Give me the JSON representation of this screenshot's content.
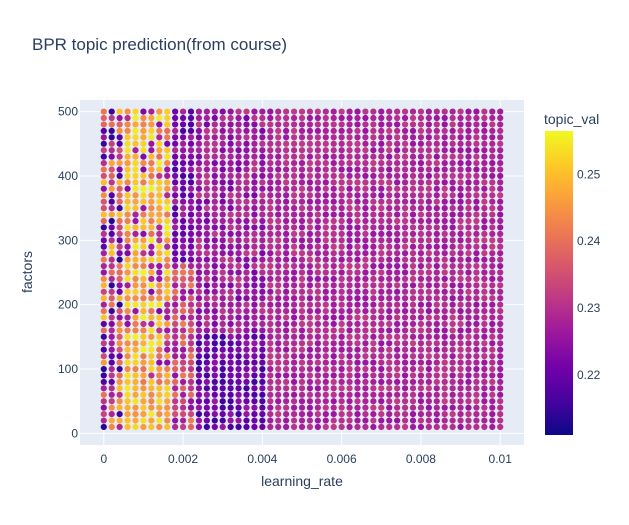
{
  "chart_data": {
    "type": "scatter",
    "title": "BPR topic prediction(from course)",
    "xlabel": "learning_rate",
    "ylabel": "factors",
    "xlim": [
      -0.0006,
      0.0106
    ],
    "ylim": [
      -18,
      518
    ],
    "x_ticks": [
      0,
      0.002,
      0.004,
      0.006,
      0.008,
      0.01
    ],
    "x_tick_labels": [
      "0",
      "0.002",
      "0.004",
      "0.006",
      "0.008",
      "0.01"
    ],
    "y_ticks": [
      0,
      100,
      200,
      300,
      400,
      500
    ],
    "y_tick_labels": [
      "0",
      "100",
      "200",
      "300",
      "400",
      "500"
    ],
    "x_grid": {
      "start": 0,
      "end": 0.01,
      "step": 0.0002
    },
    "y_grid": {
      "start": 10,
      "end": 500,
      "step": 10
    },
    "color_field": "topic_val",
    "color_range": [
      0.211,
      0.2565
    ],
    "colorbar": {
      "title": "topic_val",
      "ticks": [
        0.22,
        0.23,
        0.24,
        0.25
      ],
      "tick_labels": [
        "0.22",
        "0.23",
        "0.24",
        "0.25"
      ],
      "colorscale": [
        "#0d0887",
        "#46039f",
        "#7201a8",
        "#9c179e",
        "#bd3786",
        "#d8576b",
        "#ed7953",
        "#fb9f3a",
        "#fdca26",
        "#f0f921"
      ]
    },
    "grid": true,
    "legend": "none"
  },
  "colors": {
    "plot_background": "#e5ecf6",
    "gridline": "#ffffff",
    "text": "#2a3f5f"
  }
}
